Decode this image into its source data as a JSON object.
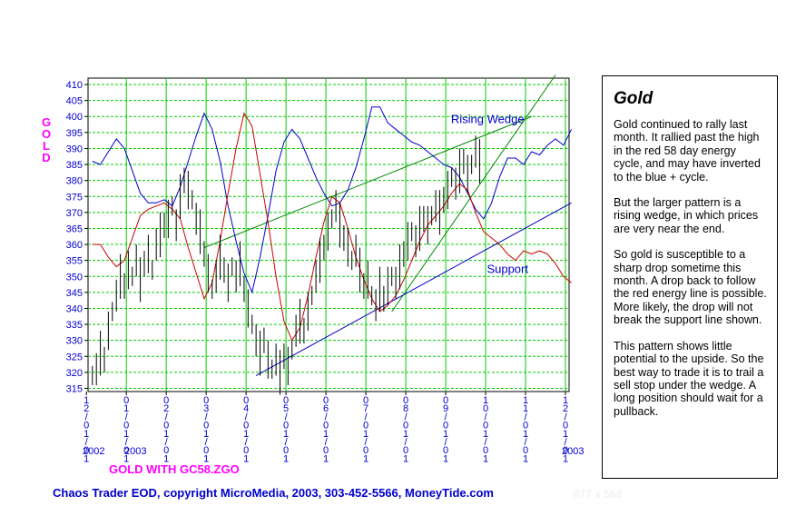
{
  "side": {
    "title": "Gold",
    "paragraphs": [
      "Gold continued to rally last month. It rallied past the high in the red 58 day energy cycle, and may have inverted to the blue + cycle.",
      "But the larger pattern is a rising wedge, in which prices are very near the end.",
      "So gold is susceptible to a sharp drop sometime this month. A drop back to follow the red energy line is possible. More likely, the drop will not break the support line shown.",
      "This pattern shows little potential to the upside. So the best way to trade it is to trail a sell stop under the wedge. A long position should wait for a pullback."
    ]
  },
  "vertical_label": [
    "G",
    "O",
    "L",
    "D"
  ],
  "file_label": "GOLD WITH GC58.ZGO",
  "footer": "Chaos Trader EOD, copyright MicroMedia, 2003, 303-452-5566, MoneyTide.com",
  "size_note": "877 x 568",
  "years": {
    "start": "2002",
    "start_next": "2003",
    "end": "2003"
  },
  "chart_data": {
    "type": "line",
    "ylim": [
      314,
      412
    ],
    "yticks": [
      410,
      405,
      400,
      395,
      390,
      385,
      380,
      375,
      370,
      365,
      360,
      355,
      350,
      345,
      340,
      335,
      330,
      325,
      320,
      315
    ],
    "xtick_labels": [
      "12/01/01",
      "01/01/01",
      "02/01/01",
      "03/01/01",
      "04/01/01",
      "05/01/01",
      "06/01/01",
      "07/01/01",
      "08/01/01",
      "09/01/01",
      "10/01/01",
      "11/01/01",
      "12/01/01"
    ],
    "grid": true,
    "annotations": [
      {
        "text": "Rising Wedge",
        "x": 10.1,
        "y": 398
      },
      {
        "text": "Support",
        "x": 10.6,
        "y": 351
      }
    ],
    "trendlines": [
      {
        "name": "wedge-upper",
        "color": "#008800",
        "from": [
          3.0,
          359
        ],
        "to": [
          11.2,
          400
        ]
      },
      {
        "name": "wedge-lower",
        "color": "#008800",
        "from": [
          7.7,
          339
        ],
        "to": [
          11.8,
          413
        ]
      },
      {
        "name": "support",
        "color": "#0000cc",
        "from": [
          4.3,
          319
        ],
        "to": [
          12.2,
          373
        ]
      }
    ],
    "series": [
      {
        "color": "#0000cc",
        "values": [
          [
            0.2,
            386
          ],
          [
            0.4,
            385
          ],
          [
            0.6,
            389
          ],
          [
            0.8,
            393
          ],
          [
            1.0,
            390
          ],
          [
            1.2,
            383
          ],
          [
            1.4,
            376
          ],
          [
            1.6,
            373
          ],
          [
            1.8,
            373
          ],
          [
            2.0,
            374
          ],
          [
            2.2,
            372
          ],
          [
            2.4,
            378
          ],
          [
            2.6,
            386
          ],
          [
            2.8,
            394
          ],
          [
            3.0,
            401
          ],
          [
            3.2,
            396
          ],
          [
            3.4,
            386
          ],
          [
            3.6,
            372
          ],
          [
            3.8,
            361
          ],
          [
            4.0,
            351
          ],
          [
            4.2,
            345
          ],
          [
            4.4,
            356
          ],
          [
            4.6,
            369
          ],
          [
            4.8,
            383
          ],
          [
            5.0,
            392
          ],
          [
            5.2,
            396
          ],
          [
            5.4,
            393
          ],
          [
            5.6,
            387
          ],
          [
            5.8,
            381
          ],
          [
            6.0,
            376
          ],
          [
            6.2,
            372
          ],
          [
            6.4,
            373
          ],
          [
            6.6,
            377
          ],
          [
            6.8,
            384
          ],
          [
            7.0,
            393
          ],
          [
            7.2,
            403
          ],
          [
            7.4,
            403
          ],
          [
            7.6,
            398
          ],
          [
            7.8,
            396
          ],
          [
            8.0,
            394
          ],
          [
            8.2,
            392
          ],
          [
            8.4,
            391
          ],
          [
            8.6,
            389
          ],
          [
            8.8,
            387
          ],
          [
            9.0,
            385
          ],
          [
            9.2,
            384
          ],
          [
            9.4,
            381
          ],
          [
            9.6,
            376
          ],
          [
            9.8,
            371
          ],
          [
            10.0,
            368
          ],
          [
            10.2,
            373
          ],
          [
            10.4,
            381
          ],
          [
            10.6,
            387
          ],
          [
            10.8,
            387
          ],
          [
            11.0,
            385
          ],
          [
            11.2,
            389
          ],
          [
            11.4,
            388
          ],
          [
            11.6,
            391
          ],
          [
            11.8,
            393
          ],
          [
            12.0,
            391
          ],
          [
            12.2,
            396
          ]
        ]
      },
      {
        "color": "#cc0000",
        "values": [
          [
            0.2,
            360
          ],
          [
            0.4,
            360
          ],
          [
            0.6,
            356
          ],
          [
            0.8,
            353
          ],
          [
            1.0,
            355
          ],
          [
            1.2,
            362
          ],
          [
            1.4,
            369
          ],
          [
            1.6,
            371
          ],
          [
            1.8,
            372
          ],
          [
            2.0,
            373
          ],
          [
            2.2,
            371
          ],
          [
            2.4,
            368
          ],
          [
            2.6,
            359
          ],
          [
            2.8,
            351
          ],
          [
            3.0,
            343
          ],
          [
            3.2,
            348
          ],
          [
            3.4,
            361
          ],
          [
            3.6,
            376
          ],
          [
            3.8,
            390
          ],
          [
            4.0,
            401
          ],
          [
            4.2,
            397
          ],
          [
            4.4,
            382
          ],
          [
            4.6,
            367
          ],
          [
            4.8,
            350
          ],
          [
            5.0,
            336
          ],
          [
            5.2,
            330
          ],
          [
            5.4,
            334
          ],
          [
            5.6,
            344
          ],
          [
            5.8,
            356
          ],
          [
            6.0,
            367
          ],
          [
            6.2,
            375
          ],
          [
            6.4,
            373
          ],
          [
            6.6,
            365
          ],
          [
            6.8,
            356
          ],
          [
            7.0,
            349
          ],
          [
            7.2,
            343
          ],
          [
            7.4,
            339
          ],
          [
            7.6,
            341
          ],
          [
            7.8,
            344
          ],
          [
            8.0,
            349
          ],
          [
            8.2,
            355
          ],
          [
            8.4,
            361
          ],
          [
            8.6,
            366
          ],
          [
            8.8,
            369
          ],
          [
            9.0,
            372
          ],
          [
            9.2,
            376
          ],
          [
            9.4,
            379
          ],
          [
            9.6,
            377
          ],
          [
            9.8,
            370
          ],
          [
            10.0,
            364
          ],
          [
            10.2,
            362
          ],
          [
            10.4,
            360
          ],
          [
            10.6,
            357
          ],
          [
            10.8,
            355
          ],
          [
            11.0,
            358
          ],
          [
            11.2,
            357
          ],
          [
            11.4,
            358
          ],
          [
            11.6,
            357
          ],
          [
            11.8,
            354
          ],
          [
            12.0,
            350
          ],
          [
            12.2,
            348
          ]
        ]
      }
    ],
    "price_bars": [
      [
        0.2,
        319
      ],
      [
        0.3,
        321
      ],
      [
        0.4,
        326
      ],
      [
        0.5,
        324
      ],
      [
        0.6,
        333
      ],
      [
        0.7,
        339
      ],
      [
        0.8,
        344
      ],
      [
        0.9,
        350
      ],
      [
        1.0,
        347
      ],
      [
        1.1,
        352
      ],
      [
        1.2,
        350
      ],
      [
        1.3,
        355
      ],
      [
        1.4,
        349
      ],
      [
        1.5,
        354
      ],
      [
        1.6,
        357
      ],
      [
        1.7,
        352
      ],
      [
        1.8,
        360
      ],
      [
        1.9,
        363
      ],
      [
        2.0,
        366
      ],
      [
        2.1,
        368
      ],
      [
        2.2,
        372
      ],
      [
        2.3,
        366
      ],
      [
        2.4,
        375
      ],
      [
        2.5,
        380
      ],
      [
        2.6,
        377
      ],
      [
        2.7,
        374
      ],
      [
        2.8,
        368
      ],
      [
        2.9,
        364
      ],
      [
        3.0,
        357
      ],
      [
        3.1,
        351
      ],
      [
        3.2,
        346
      ],
      [
        3.3,
        350
      ],
      [
        3.4,
        356
      ],
      [
        3.5,
        352
      ],
      [
        3.6,
        348
      ],
      [
        3.7,
        353
      ],
      [
        3.8,
        350
      ],
      [
        3.9,
        354
      ],
      [
        4.0,
        346
      ],
      [
        4.1,
        340
      ],
      [
        4.2,
        335
      ],
      [
        4.3,
        330
      ],
      [
        4.4,
        326
      ],
      [
        4.5,
        330
      ],
      [
        4.6,
        324
      ],
      [
        4.7,
        321
      ],
      [
        4.8,
        324
      ],
      [
        4.9,
        320
      ],
      [
        5.0,
        325
      ],
      [
        5.1,
        322
      ],
      [
        5.2,
        327
      ],
      [
        5.3,
        333
      ],
      [
        5.4,
        336
      ],
      [
        5.5,
        333
      ],
      [
        5.6,
        339
      ],
      [
        5.7,
        344
      ],
      [
        5.8,
        350
      ],
      [
        5.9,
        355
      ],
      [
        6.0,
        359
      ],
      [
        6.1,
        364
      ],
      [
        6.2,
        368
      ],
      [
        6.3,
        372
      ],
      [
        6.4,
        366
      ],
      [
        6.5,
        362
      ],
      [
        6.6,
        359
      ],
      [
        6.7,
        355
      ],
      [
        6.8,
        358
      ],
      [
        6.9,
        352
      ],
      [
        7.0,
        347
      ],
      [
        7.1,
        349
      ],
      [
        7.2,
        344
      ],
      [
        7.3,
        341
      ],
      [
        7.4,
        346
      ],
      [
        7.5,
        343
      ],
      [
        7.6,
        347
      ],
      [
        7.7,
        350
      ],
      [
        7.8,
        348
      ],
      [
        7.9,
        353
      ],
      [
        8.0,
        357
      ],
      [
        8.1,
        361
      ],
      [
        8.2,
        364
      ],
      [
        8.3,
        361
      ],
      [
        8.4,
        365
      ],
      [
        8.5,
        368
      ],
      [
        8.6,
        366
      ],
      [
        8.7,
        369
      ],
      [
        8.8,
        372
      ],
      [
        8.9,
        370
      ],
      [
        9.0,
        374
      ],
      [
        9.1,
        377
      ],
      [
        9.2,
        381
      ],
      [
        9.3,
        379
      ],
      [
        9.4,
        383
      ],
      [
        9.5,
        386
      ],
      [
        9.6,
        382
      ],
      [
        9.7,
        385
      ],
      [
        9.8,
        389
      ],
      [
        9.9,
        386
      ]
    ]
  }
}
